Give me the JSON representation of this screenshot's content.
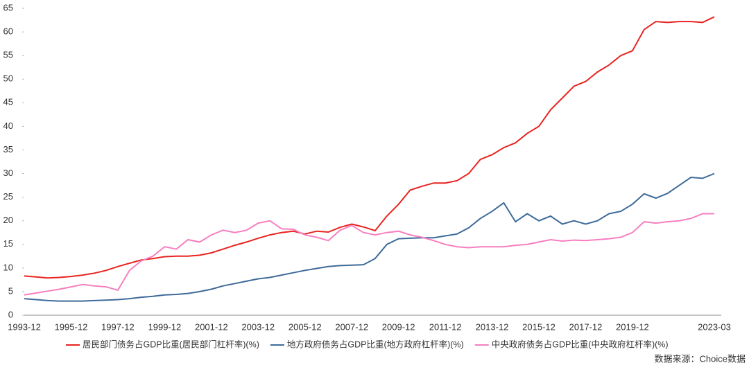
{
  "chart_data": {
    "type": "line",
    "categories": [
      "1993-12",
      null,
      null,
      null,
      "1995-12",
      null,
      null,
      null,
      "1997-12",
      null,
      null,
      null,
      "1999-12",
      null,
      null,
      null,
      "2001-12",
      null,
      null,
      null,
      "2003-12",
      null,
      null,
      null,
      "2005-12",
      null,
      null,
      null,
      "2007-12",
      null,
      null,
      null,
      "2009-12",
      null,
      null,
      null,
      "2011-12",
      null,
      null,
      null,
      "2013-12",
      null,
      null,
      null,
      "2015-12",
      null,
      null,
      null,
      "2017-12",
      null,
      null,
      null,
      "2019-12",
      null,
      null,
      null,
      null,
      null,
      null,
      "2023-03"
    ],
    "series": [
      {
        "name": "居民部门债务占GDP比重(居民部门杠杆率)(%)",
        "color": "#e8231f",
        "values": [
          8.3,
          8.1,
          7.9,
          8.0,
          8.2,
          8.5,
          8.9,
          9.5,
          10.3,
          11.0,
          11.7,
          12.0,
          12.4,
          12.5,
          12.5,
          12.7,
          13.2,
          14.0,
          14.8,
          15.5,
          16.3,
          17.0,
          17.5,
          17.8,
          17.2,
          17.8,
          17.6,
          18.6,
          19.3,
          18.7,
          17.9,
          21.0,
          23.5,
          26.5,
          27.3,
          28.0,
          28.0,
          28.5,
          30.0,
          33.0,
          34.0,
          35.5,
          36.5,
          38.5,
          40.0,
          43.5,
          46.0,
          48.5,
          49.5,
          51.5,
          53.0,
          55.0,
          56.0,
          60.5,
          62.2,
          62.0,
          62.2,
          62.2,
          62.0,
          63.2
        ]
      },
      {
        "name": "地方政府债务占GDP比重(地方政府杠杆率)(%)",
        "color": "#3d6a99",
        "values": [
          3.5,
          3.3,
          3.1,
          3.0,
          3.0,
          3.0,
          3.1,
          3.2,
          3.3,
          3.5,
          3.8,
          4.0,
          4.3,
          4.4,
          4.6,
          5.0,
          5.5,
          6.2,
          6.7,
          7.2,
          7.7,
          8.0,
          8.5,
          9.0,
          9.5,
          9.9,
          10.3,
          10.5,
          10.6,
          10.7,
          12.0,
          15.0,
          16.2,
          16.3,
          16.4,
          16.4,
          16.8,
          17.2,
          18.5,
          20.5,
          22.0,
          23.8,
          19.8,
          21.5,
          20.0,
          21.0,
          19.3,
          20.0,
          19.3,
          20.0,
          21.5,
          22.0,
          23.5,
          25.7,
          24.8,
          25.8,
          27.5,
          29.2,
          29.0,
          30.0
        ]
      },
      {
        "name": "中央政府债务占GDP比重(中央政府杠杆率)(%)",
        "color": "#f77ec0",
        "values": [
          4.3,
          4.7,
          5.1,
          5.5,
          6.0,
          6.5,
          6.2,
          6.0,
          5.3,
          9.5,
          11.5,
          12.5,
          14.5,
          14.0,
          16.0,
          15.5,
          17.0,
          18.0,
          17.5,
          18.0,
          19.5,
          20.0,
          18.3,
          18.2,
          17.0,
          16.5,
          15.8,
          18.0,
          19.0,
          17.5,
          17.0,
          17.5,
          17.8,
          17.0,
          16.5,
          15.8,
          15.0,
          14.5,
          14.3,
          14.5,
          14.5,
          14.5,
          14.8,
          15.0,
          15.5,
          16.0,
          15.7,
          15.9,
          15.8,
          16.0,
          16.2,
          16.5,
          17.5,
          19.8,
          19.5,
          19.8,
          20.0,
          20.5,
          21.5,
          21.5
        ]
      }
    ],
    "ylim": [
      0,
      65
    ],
    "yticks": [
      0,
      5,
      10,
      15,
      20,
      25,
      30,
      35,
      40,
      45,
      50,
      55,
      60,
      65
    ],
    "source": "数据来源：Choice数据",
    "legend": "bottom"
  }
}
